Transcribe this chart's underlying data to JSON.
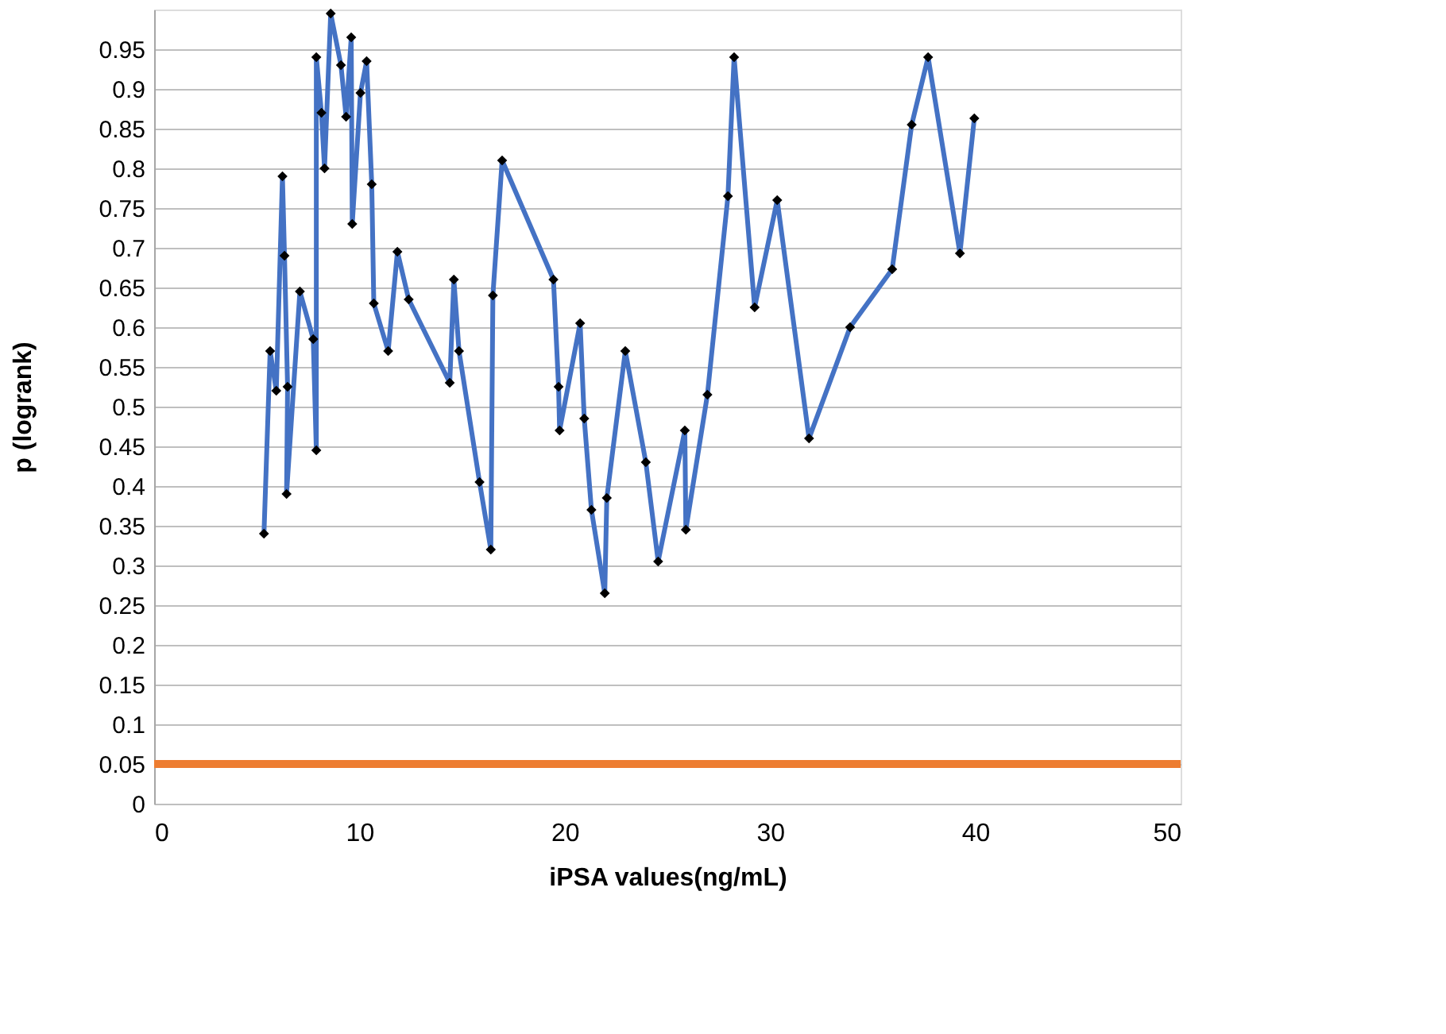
{
  "chart_data": {
    "type": "line",
    "xlabel": "iPSA values(ng/mL)",
    "ylabel": "p (logrank)",
    "x": [
      5.35,
      5.65,
      5.95,
      6.25,
      6.35,
      6.5,
      6.45,
      7.1,
      7.75,
      7.9,
      7.9,
      8.15,
      8.3,
      8.6,
      9.1,
      9.35,
      9.6,
      9.65,
      10.05,
      10.35,
      10.6,
      10.7,
      11.4,
      11.85,
      12.4,
      14.4,
      14.6,
      14.85,
      15.85,
      16.4,
      16.5,
      16.95,
      19.45,
      19.7,
      19.75,
      20.75,
      20.95,
      21.3,
      21.95,
      22.05,
      22.95,
      23.95,
      24.55,
      25.85,
      25.9,
      26.95,
      27.95,
      28.25,
      29.25,
      30.35,
      31.9,
      33.9,
      35.95,
      36.9,
      37.7,
      39.25,
      39.95
    ],
    "series": [
      {
        "color": "#4472c4",
        "values": [
          0.34,
          0.57,
          0.52,
          0.79,
          0.69,
          0.525,
          0.39,
          0.645,
          0.585,
          0.445,
          0.94,
          0.87,
          0.8,
          0.995,
          0.93,
          0.865,
          0.965,
          0.73,
          0.895,
          0.935,
          0.78,
          0.63,
          0.57,
          0.695,
          0.635,
          0.53,
          0.66,
          0.57,
          0.405,
          0.32,
          0.64,
          0.81,
          0.66,
          0.525,
          0.47,
          0.605,
          0.485,
          0.37,
          0.265,
          0.385,
          0.57,
          0.43,
          0.305,
          0.47,
          0.345,
          0.515,
          0.765,
          0.94,
          0.625,
          0.76,
          0.46,
          0.6,
          0.673,
          0.855,
          0.94,
          0.693,
          0.863
        ]
      }
    ],
    "marker": "diamond",
    "line_style": "solid",
    "xlim": [
      0,
      50
    ],
    "xticks": [
      0,
      10,
      20,
      30,
      40,
      50
    ],
    "ylim": [
      0,
      1
    ],
    "yticks": [
      0,
      0.05,
      0.1,
      0.15,
      0.2,
      0.25,
      0.3,
      0.35,
      0.4,
      0.45,
      0.5,
      0.55,
      0.6,
      0.65,
      0.7,
      0.75,
      0.8,
      0.85,
      0.9,
      0.95
    ],
    "grid": "y",
    "ref_lines": [
      {
        "axis": "y",
        "value": 0.05,
        "color": "#ed7d31"
      }
    ]
  }
}
